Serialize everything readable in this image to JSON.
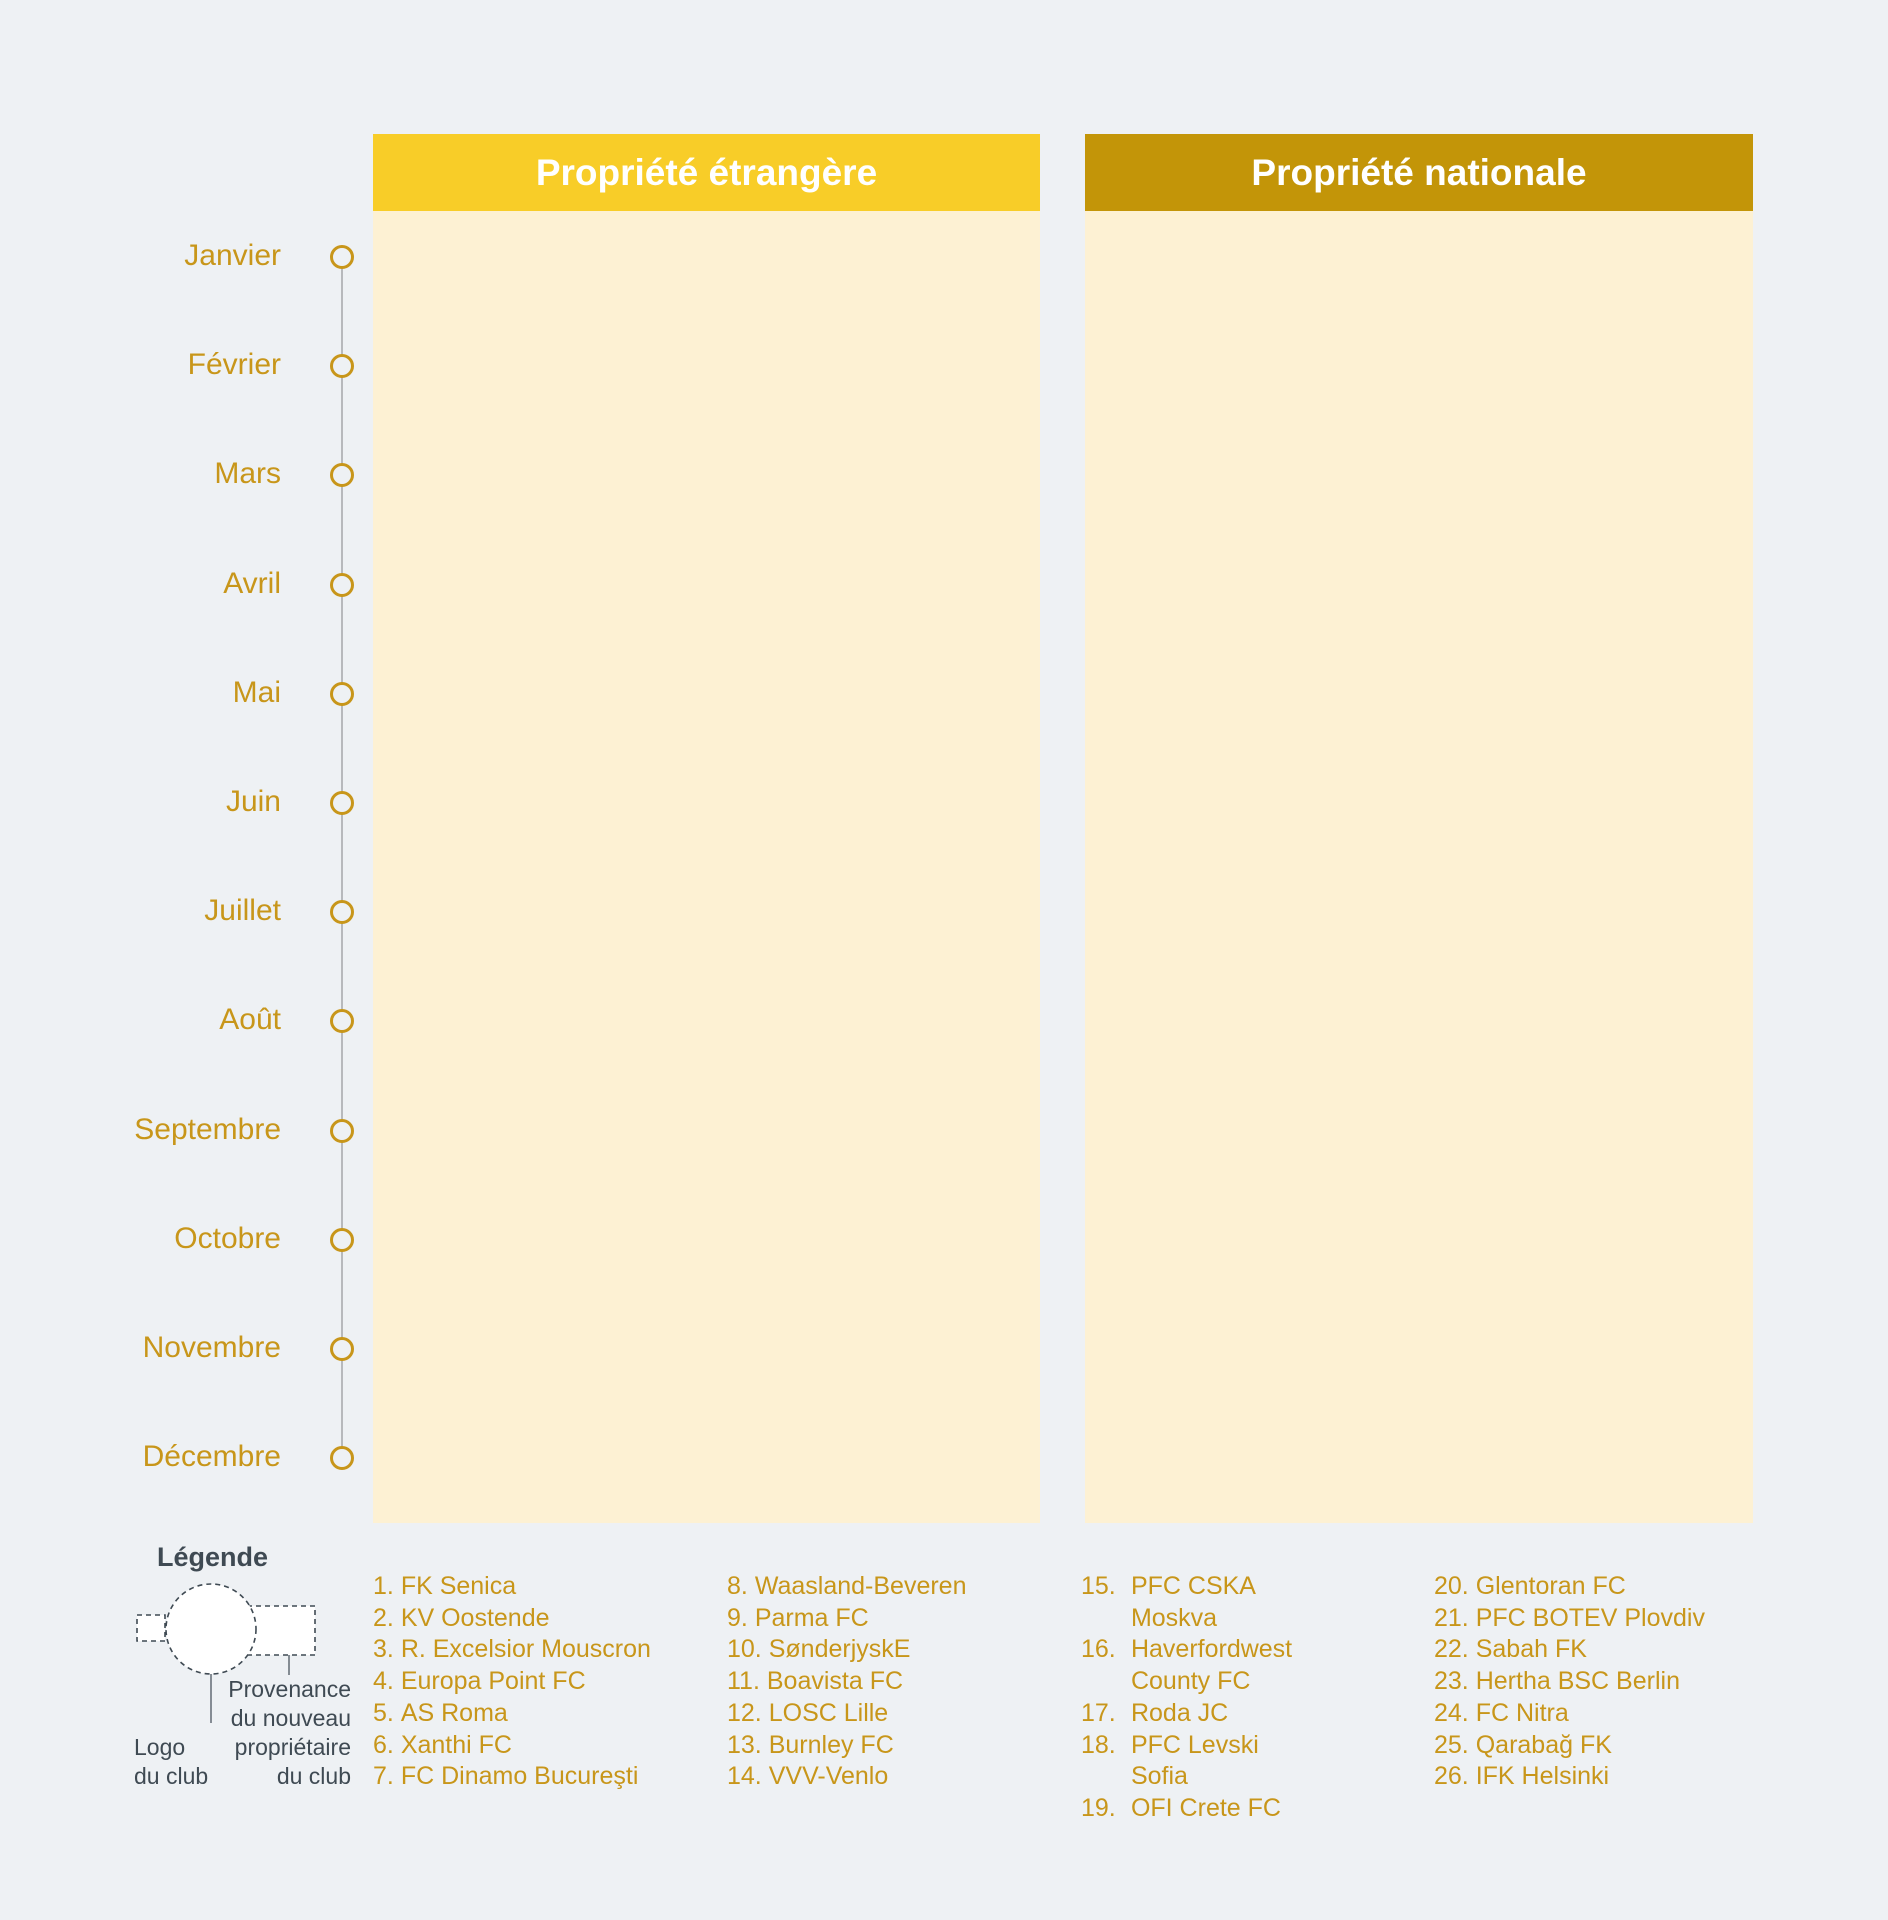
{
  "panels": {
    "foreign": {
      "title": "Propriété étrangère",
      "color": "#f8cd28"
    },
    "national": {
      "title": "Propriété nationale",
      "color": "#c39508"
    }
  },
  "months": [
    "Janvier",
    "Février",
    "Mars",
    "Avril",
    "Mai",
    "Juin",
    "Juillet",
    "Août",
    "Septembre",
    "Octobre",
    "Novembre",
    "Décembre"
  ],
  "legend": {
    "title": "Légende",
    "logo_label_1": "Logo",
    "logo_label_2": "du club",
    "provenance_label_1": "Provenance",
    "provenance_label_2": "du nouveau",
    "provenance_label_3": "propriétaire",
    "provenance_label_4": "du club"
  },
  "clubs": [
    {
      "num": "1.",
      "name": "FK Senica"
    },
    {
      "num": "2.",
      "name": "KV Oostende"
    },
    {
      "num": "3.",
      "name": "R. Excelsior Mouscron"
    },
    {
      "num": "4.",
      "name": "Europa Point FC"
    },
    {
      "num": "5.",
      "name": "AS Roma"
    },
    {
      "num": "6.",
      "name": "Xanthi FC"
    },
    {
      "num": "7.",
      "name": "FC Dinamo Bucureşti"
    },
    {
      "num": "8.",
      "name": "Waasland-Beveren"
    },
    {
      "num": "9.",
      "name": "Parma FC"
    },
    {
      "num": "10.",
      "name": "SønderjyskE"
    },
    {
      "num": "11.",
      "name": "Boavista FC"
    },
    {
      "num": "12.",
      "name": "LOSC Lille"
    },
    {
      "num": "13.",
      "name": "Burnley FC"
    },
    {
      "num": "14.",
      "name": "VVV-Venlo"
    },
    {
      "num": "15.",
      "name": "PFC CSKA Moskva"
    },
    {
      "num": "16.",
      "name": "Haverfordwest County FC"
    },
    {
      "num": "17.",
      "name": "Roda JC"
    },
    {
      "num": "18.",
      "name": "PFC Levski Sofia"
    },
    {
      "num": "19.",
      "name": "OFI Crete FC"
    },
    {
      "num": "20.",
      "name": "Glentoran FC"
    },
    {
      "num": "21.",
      "name": "PFC BOTEV Plovdiv"
    },
    {
      "num": "22.",
      "name": "Sabah FK"
    },
    {
      "num": "23.",
      "name": "Hertha BSC Berlin"
    },
    {
      "num": "24.",
      "name": "FC Nitra"
    },
    {
      "num": "25.",
      "name": "Qarabağ FK"
    },
    {
      "num": "26.",
      "name": "IFK Helsinki"
    }
  ],
  "colors": {
    "accent": "#c8961a",
    "background": "#eef1f4",
    "panel_fill": "#fdf1d3",
    "legend_text": "#3f4a53"
  }
}
